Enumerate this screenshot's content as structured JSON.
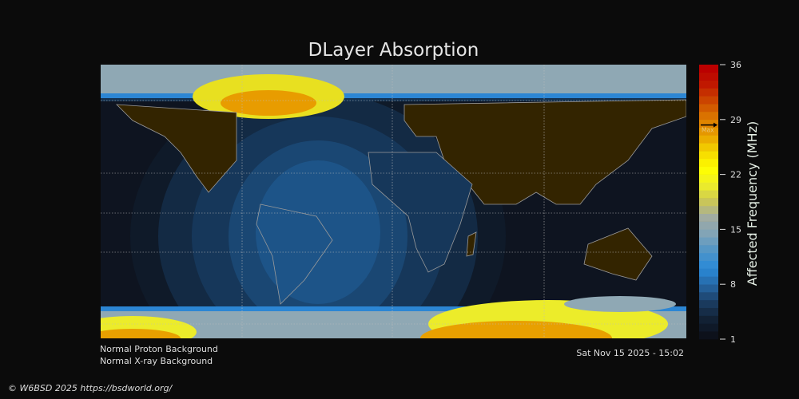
{
  "title": "DLayer Absorption",
  "colorbar": {
    "label": "Affected Frequency (MHz)",
    "range": [
      1,
      36
    ],
    "ticks": [
      "36",
      "29",
      "22",
      "15",
      "8",
      "1"
    ],
    "tick_values": [
      36,
      29,
      22,
      15,
      8,
      1
    ],
    "max_label": "Max",
    "max_value": 28.3,
    "colormap": [
      "#0d111b",
      "#122236",
      "#1b3d62",
      "#2666a3",
      "#2a8ad8",
      "#4d94c8",
      "#7ea3b8",
      "#9eaaa6",
      "#c9c55a",
      "#ecec2a",
      "#ffff00",
      "#f5d800",
      "#e8a000",
      "#dd7a00",
      "#cc4a00",
      "#c01a00",
      "#bb0000"
    ]
  },
  "map": {
    "background_color": "#0e1420",
    "land_color": "#332400",
    "coast_color": "#9a9a9a"
  },
  "status": {
    "proton": "Normal Proton Background",
    "xray": "Normal X-ray Background"
  },
  "timestamp": "Sat Nov 15 2025 - 15:02",
  "copyright": "© W6BSD 2025 https://bsdworld.org/"
}
